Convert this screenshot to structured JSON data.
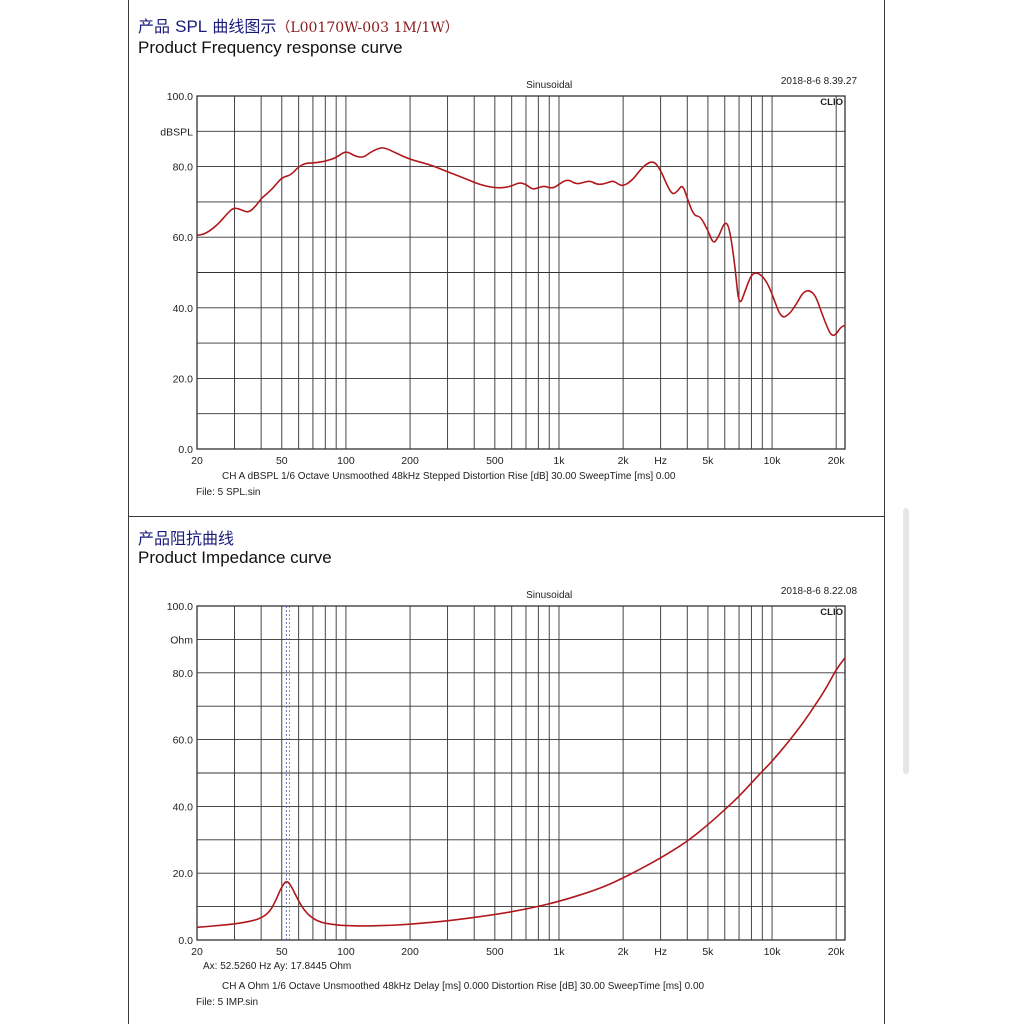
{
  "chart_data": [
    {
      "type": "line",
      "title_cn": "产品",
      "title_cn_spl": "SPL",
      "title_cn_rest": " 曲线图示",
      "title_model": "（L00170W-003 1M/1W）",
      "title": "Product Frequency response curve",
      "subtitle": "Sinusoidal",
      "timestamp": "2018-8-6 8.39.27",
      "brand": "CLIO",
      "ylabel": "dBSPL",
      "xscale": "log",
      "xlim": [
        20,
        22000
      ],
      "ylim": [
        0,
        100
      ],
      "y_ticks": [
        "100.0",
        "80.0",
        "60.0",
        "40.0",
        "20.0",
        "0.0"
      ],
      "y_tick_values": [
        100,
        80,
        60,
        40,
        20,
        0
      ],
      "x_ticks": [
        "20",
        "50",
        "100",
        "200",
        "500",
        "1k",
        "2k",
        "Hz",
        "5k",
        "10k",
        "20k"
      ],
      "grid": true,
      "series": [
        {
          "color": "#b0181c",
          "x": [
            20,
            22,
            25,
            28,
            30,
            33,
            35,
            38,
            40,
            45,
            50,
            55,
            60,
            65,
            70,
            80,
            90,
            100,
            110,
            120,
            130,
            140,
            150,
            170,
            200,
            250,
            300,
            350,
            400,
            450,
            500,
            550,
            600,
            650,
            700,
            750,
            800,
            850,
            900,
            950,
            1000,
            1100,
            1200,
            1300,
            1400,
            1500,
            1600,
            1700,
            1800,
            1900,
            2000,
            2200,
            2400,
            2600,
            2800,
            3000,
            3200,
            3400,
            3600,
            3800,
            4000,
            4300,
            4600,
            5000,
            5300,
            5600,
            6000,
            6300,
            6700,
            7000,
            7500,
            8000,
            8500,
            9000,
            9500,
            10000,
            11000,
            12000,
            13000,
            14000,
            15000,
            16000,
            17000,
            18000,
            19000,
            20000,
            21000,
            22000
          ],
          "y": [
            60.5,
            61,
            63.5,
            67,
            68.5,
            67.5,
            67,
            69,
            71,
            73.5,
            77,
            77.5,
            80,
            81,
            81,
            81.5,
            82.5,
            84.5,
            83,
            82.5,
            84,
            85,
            85.5,
            84,
            82,
            80.5,
            78.5,
            77,
            75.5,
            74.5,
            74,
            74,
            74.5,
            75.5,
            75,
            73.5,
            74,
            74.5,
            74,
            74,
            75,
            76.5,
            75,
            75.5,
            76,
            75,
            75,
            75.5,
            76,
            75,
            74.5,
            76,
            79,
            81,
            81.5,
            79,
            75,
            72,
            73,
            75,
            71,
            66,
            66,
            62,
            58,
            60,
            64.5,
            63,
            52,
            40,
            45,
            49.5,
            50,
            49,
            47,
            44,
            37,
            38,
            41,
            44.5,
            45,
            43.5,
            39,
            35,
            32,
            32.5,
            34.5,
            35
          ]
        }
      ],
      "footer_line1": "CH A   dBSPL    1/6 Octave   Unsmoothed   48kHz   Stepped    Distortion Rise [dB] 30.00    SweepTime [ms] 0.00",
      "footer_line2": "File: 5 SPL.sin"
    },
    {
      "type": "line",
      "title_cn": "产品阻抗曲线",
      "title": "Product Impedance curve",
      "subtitle": "Sinusoidal",
      "timestamp": "2018-8-6 8.22.08",
      "brand": "CLIO",
      "ylabel": "Ohm",
      "xscale": "log",
      "xlim": [
        20,
        22000
      ],
      "ylim": [
        0,
        100
      ],
      "y_ticks": [
        "100.0",
        "80.0",
        "60.0",
        "40.0",
        "20.0",
        "0.0"
      ],
      "y_tick_values": [
        100,
        80,
        60,
        40,
        20,
        0
      ],
      "x_ticks": [
        "20",
        "50",
        "100",
        "200",
        "500",
        "1k",
        "2k",
        "Hz",
        "5k",
        "10k",
        "20k"
      ],
      "grid": true,
      "cursor_x": 52.526,
      "cursor_readout": "Ax: 52.5260 Hz   Ay: 17.8445 Ohm",
      "series": [
        {
          "color": "#b0181c",
          "x": [
            20,
            25,
            30,
            35,
            40,
            44,
            47,
            50,
            52.5,
            55,
            58,
            62,
            66,
            70,
            75,
            80,
            90,
            100,
            120,
            150,
            200,
            300,
            500,
            700,
            1000,
            1500,
            2000,
            3000,
            4000,
            5000,
            6000,
            7000,
            8000,
            9000,
            10000,
            12000,
            14000,
            16000,
            18000,
            20000,
            22000
          ],
          "y": [
            3.8,
            4.3,
            4.8,
            5.5,
            6.5,
            8.5,
            12,
            16,
            17.8,
            16.5,
            13.5,
            10,
            7.8,
            6.5,
            5.5,
            5,
            4.5,
            4.3,
            4.2,
            4.3,
            4.7,
            5.7,
            7.6,
            9.2,
            11.5,
            15,
            18.5,
            24.5,
            29.5,
            34.5,
            39,
            43,
            47,
            50.5,
            53.5,
            59.5,
            65,
            70.5,
            75.5,
            81,
            84.5
          ]
        }
      ],
      "footer_line1": "CH A   Ohm    1/6 Octave   Unsmoothed   48kHz   Delay [ms] 0.000    Distortion Rise [dB] 30.00    SweepTime [ms] 0.00",
      "footer_line2": "File: 5 IMP.sin"
    }
  ]
}
